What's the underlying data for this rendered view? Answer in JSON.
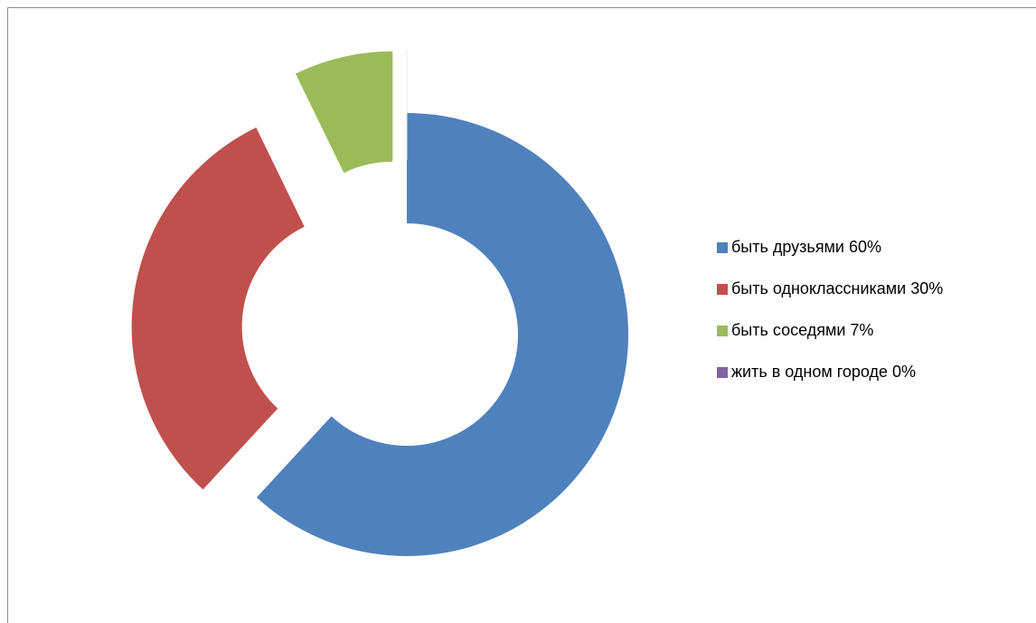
{
  "chart_data": {
    "type": "pie",
    "variant": "exploded-doughnut",
    "title": "",
    "categories": [
      "быть друзьями 60%",
      "быть одноклассниками 30%",
      "быть соседями 7%",
      "жить в одном городе 0%"
    ],
    "values": [
      60,
      30,
      7,
      0
    ],
    "colors": [
      "#4F81BD",
      "#C0504D",
      "#9BBB59",
      "#8064A2"
    ],
    "legend_position": "right"
  }
}
